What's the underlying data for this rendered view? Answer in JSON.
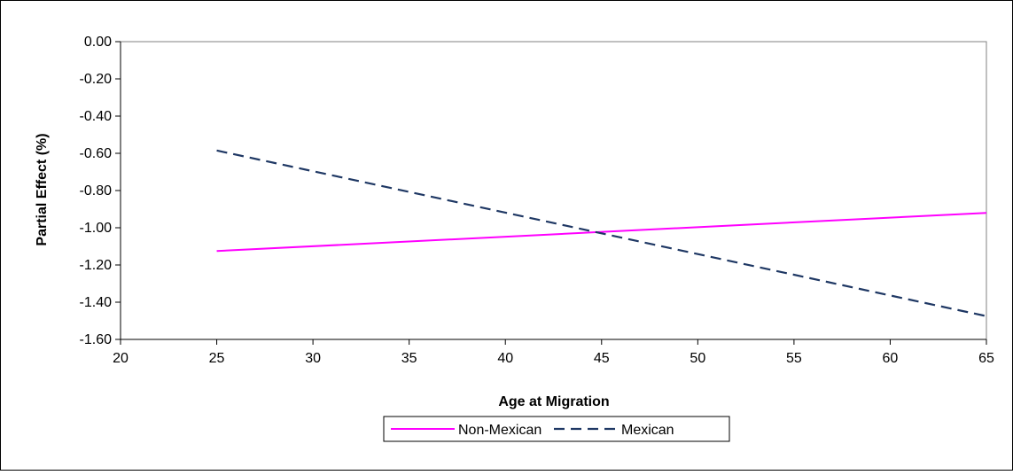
{
  "chart_data": {
    "type": "line",
    "title": "",
    "xlabel": "Age at Migration",
    "ylabel": "Partial Effect (%)",
    "xlim": [
      20,
      65
    ],
    "ylim": [
      -1.6,
      0.0
    ],
    "x_ticks": [
      "20",
      "25",
      "30",
      "35",
      "40",
      "45",
      "50",
      "55",
      "60",
      "65"
    ],
    "y_ticks": [
      "0.00",
      "-0.20",
      "-0.40",
      "-0.60",
      "-0.80",
      "-1.00",
      "-1.20",
      "-1.40",
      "-1.60"
    ],
    "grid": false,
    "legend_position": "bottom",
    "series": [
      {
        "name": "Non-Mexican",
        "color": "#ff00ff",
        "style": "solid",
        "x": [
          25,
          65
        ],
        "y": [
          -1.125,
          -0.92
        ]
      },
      {
        "name": "Mexican",
        "color": "#1f3864",
        "style": "dashed",
        "x": [
          25,
          65
        ],
        "y": [
          -0.585,
          -1.475
        ]
      }
    ]
  }
}
